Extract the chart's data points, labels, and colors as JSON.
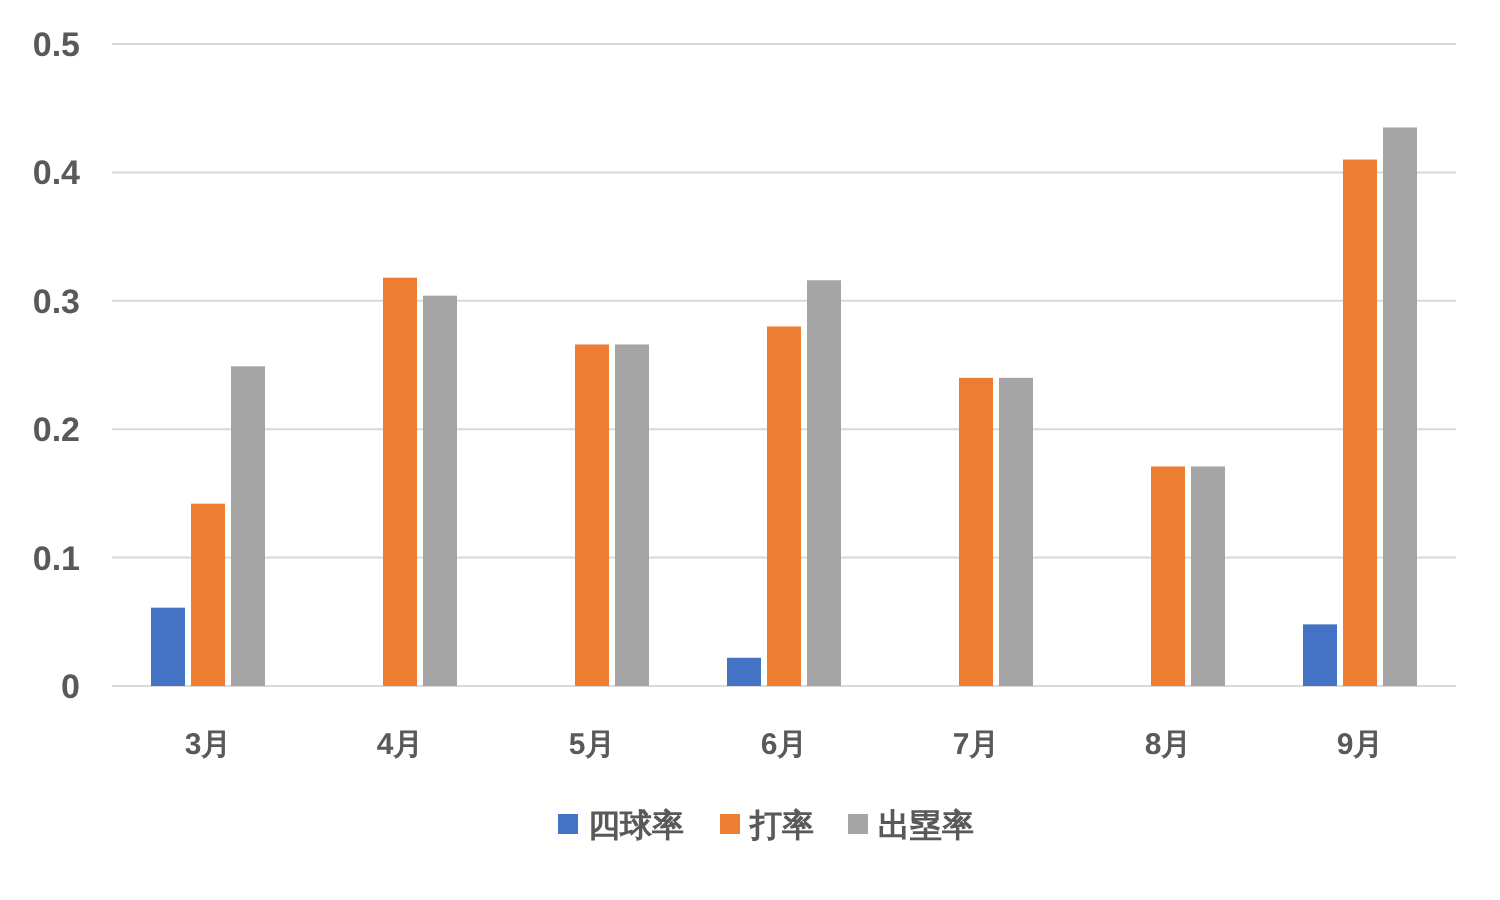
{
  "chart_data": {
    "type": "bar",
    "categories": [
      "3月",
      "4月",
      "5月",
      "6月",
      "7月",
      "8月",
      "9月"
    ],
    "series": [
      {
        "name": "四球率",
        "color": "#4472c4",
        "values": [
          0.061,
          0,
          0,
          0.022,
          0,
          0,
          0.048
        ]
      },
      {
        "name": "打率",
        "color": "#ed7d31",
        "values": [
          0.142,
          0.318,
          0.266,
          0.28,
          0.24,
          0.171,
          0.41
        ]
      },
      {
        "name": "出塁率",
        "color": "#a5a5a5",
        "values": [
          0.249,
          0.304,
          0.266,
          0.316,
          0.24,
          0.171,
          0.435
        ]
      }
    ],
    "ylim": [
      0,
      0.5
    ],
    "yticks": [
      0,
      0.1,
      0.2,
      0.3,
      0.4,
      0.5
    ],
    "grid": "y",
    "legend": "bottom"
  }
}
